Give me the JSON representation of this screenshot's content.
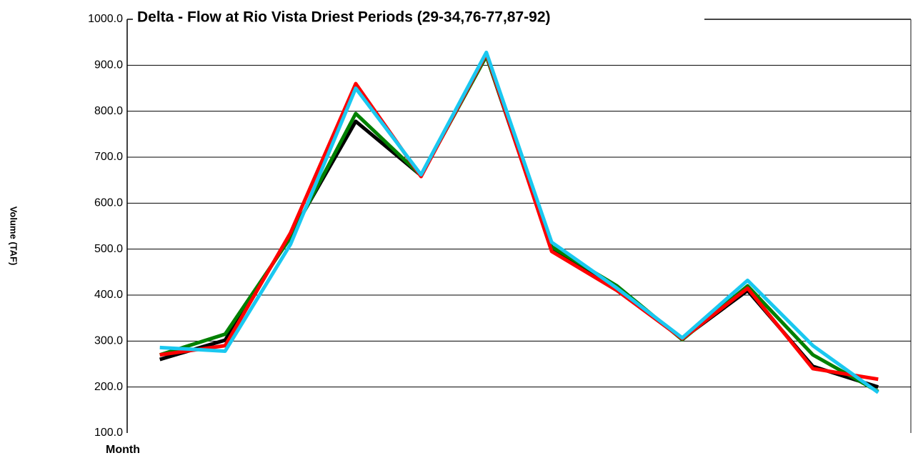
{
  "chart_data": {
    "type": "line",
    "title": "Delta - Flow at Rio Vista Driest Periods (29-34,76-77,87-92)",
    "x_label": "Month",
    "y_label": "Volume (TAF)",
    "categories": [
      null,
      null,
      null,
      null,
      null,
      null,
      null,
      null,
      null,
      null,
      null,
      null
    ],
    "series": [
      {
        "color": "#000000",
        "values": [
          260,
          302,
          530,
          778,
          660,
          920,
          500,
          415,
          305,
          410,
          245,
          200
        ]
      },
      {
        "color": "#008000",
        "values": [
          270,
          315,
          525,
          795,
          660,
          920,
          505,
          420,
          303,
          420,
          270,
          190
        ]
      },
      {
        "color": "#ff0000",
        "values": [
          270,
          290,
          535,
          860,
          658,
          925,
          495,
          410,
          305,
          415,
          240,
          217
        ]
      },
      {
        "color": "#1ac8f0",
        "values": [
          286,
          278,
          510,
          850,
          662,
          928,
          515,
          415,
          307,
          432,
          290,
          188
        ]
      }
    ],
    "ylim": [
      100,
      1000
    ],
    "yticks": [
      {
        "value": 100,
        "label": "100.0"
      },
      {
        "value": 200,
        "label": "200.0"
      },
      {
        "value": 300,
        "label": "300.0"
      },
      {
        "value": 400,
        "label": "400.0"
      },
      {
        "value": 500,
        "label": "500.0"
      },
      {
        "value": 600,
        "label": "600.0"
      },
      {
        "value": 700,
        "label": "700.0"
      },
      {
        "value": 800,
        "label": "800.0"
      },
      {
        "value": 900,
        "label": "900.0"
      },
      {
        "value": 1000,
        "label": "1000.0"
      }
    ],
    "grid": true
  }
}
